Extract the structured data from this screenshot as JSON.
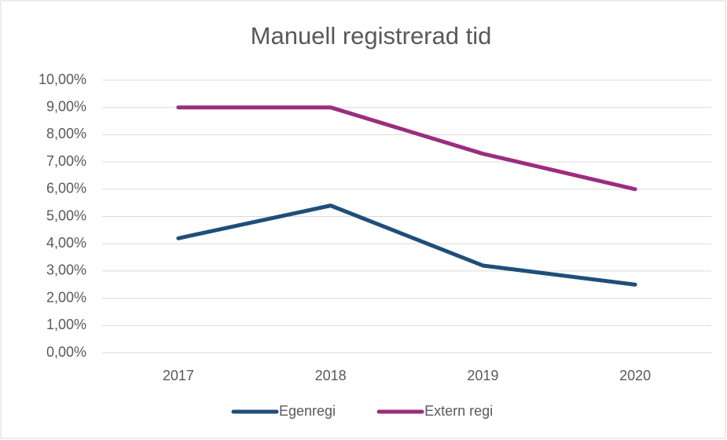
{
  "chart_data": {
    "type": "line",
    "title": "Manuell registrerad tid",
    "categories": [
      "2017",
      "2018",
      "2019",
      "2020"
    ],
    "series": [
      {
        "name": "Egenregi",
        "color": "#1f4e79",
        "values": [
          4.2,
          5.4,
          3.2,
          2.5
        ]
      },
      {
        "name": "Extern regi",
        "color": "#9b2d7f",
        "values": [
          9.0,
          9.0,
          7.3,
          6.0
        ]
      }
    ],
    "ylim": [
      0,
      10
    ],
    "yticks": [
      {
        "value": 0,
        "label": "0,00%"
      },
      {
        "value": 1,
        "label": "1,00%"
      },
      {
        "value": 2,
        "label": "2,00%"
      },
      {
        "value": 3,
        "label": "3,00%"
      },
      {
        "value": 4,
        "label": "4,00%"
      },
      {
        "value": 5,
        "label": "5,00%"
      },
      {
        "value": 6,
        "label": "6,00%"
      },
      {
        "value": 7,
        "label": "7,00%"
      },
      {
        "value": 8,
        "label": "8,00%"
      },
      {
        "value": 9,
        "label": "9,00%"
      },
      {
        "value": 10,
        "label": "10,00%"
      }
    ],
    "grid": true,
    "legend": "bottom"
  }
}
